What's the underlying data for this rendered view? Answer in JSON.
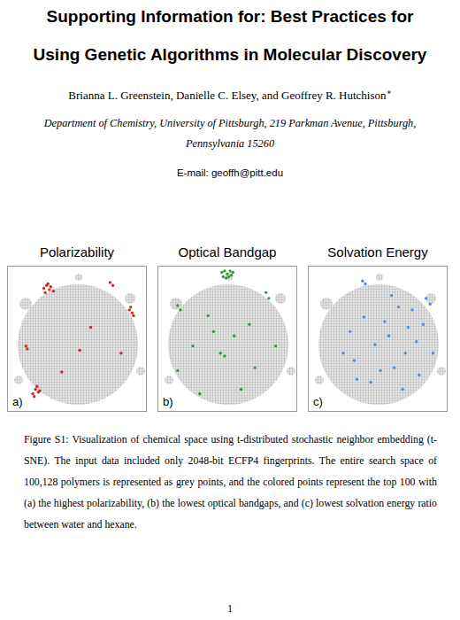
{
  "document": {
    "title_lines": [
      "Supporting Information for: Best Practices for",
      "Using Genetic Algorithms in Molecular Discovery"
    ],
    "authors": "Brianna L. Greenstein, Danielle C. Elsey, and Geoffrey R. Hutchison",
    "corresponding_mark": "∗",
    "affiliation_lines": [
      "Department of Chemistry, University of Pittsburgh, 219 Parkman Avenue, Pittsburgh,",
      "Pennsylvania 15260"
    ],
    "email": "E-mail: geoffh@pitt.edu",
    "caption": "Figure S1: Visualization of chemical space using t-distributed stochastic neighbor embedding (t-SNE). The input data included only 2048-bit ECFP4 fingerprints. The entire search space of 100,128 polymers is represented as grey points, and the colored points represent the top 100 with (a) the highest polarizability, (b) the lowest optical bandgaps, and (c) lowest solvation energy ratio between water and hexane.",
    "page_number": 1
  },
  "chart_data": [
    {
      "type": "scatter",
      "title": "Polarizability",
      "annotation": "a)",
      "xlim": [
        0,
        1
      ],
      "ylim": [
        0,
        1
      ],
      "tick_labels": false,
      "series": [
        {
          "color": "#d62728",
          "marker": "circle",
          "x": [
            0.26,
            0.28,
            0.3,
            0.27,
            0.31,
            0.29,
            0.33,
            0.74,
            0.76,
            0.88,
            0.9,
            0.89,
            0.91,
            0.13,
            0.14,
            0.39,
            0.52,
            0.2,
            0.22,
            0.18,
            0.21,
            0.19,
            0.23,
            0.6,
            0.82
          ],
          "values": [
            0.85,
            0.87,
            0.84,
            0.82,
            0.86,
            0.88,
            0.83,
            0.89,
            0.87,
            0.7,
            0.68,
            0.72,
            0.66,
            0.45,
            0.43,
            0.27,
            0.42,
            0.15,
            0.13,
            0.12,
            0.17,
            0.1,
            0.14,
            0.58,
            0.4
          ]
        }
      ]
    },
    {
      "type": "scatter",
      "title": "Optical Bandgap",
      "annotation": "b)",
      "xlim": [
        0,
        1
      ],
      "ylim": [
        0,
        1
      ],
      "tick_labels": false,
      "series": [
        {
          "color": "#2ca02c",
          "marker": "circle",
          "x": [
            0.46,
            0.48,
            0.5,
            0.52,
            0.54,
            0.47,
            0.51,
            0.53,
            0.49,
            0.14,
            0.16,
            0.36,
            0.55,
            0.78,
            0.8,
            0.85,
            0.14,
            0.3,
            0.6,
            0.45,
            0.48,
            0.66,
            0.4,
            0.25,
            0.7
          ],
          "values": [
            0.96,
            0.97,
            0.95,
            0.97,
            0.96,
            0.93,
            0.93,
            0.94,
            0.92,
            0.73,
            0.7,
            0.66,
            0.52,
            0.82,
            0.78,
            0.45,
            0.28,
            0.12,
            0.15,
            0.4,
            0.38,
            0.6,
            0.55,
            0.45,
            0.3
          ]
        }
      ]
    },
    {
      "type": "scatter",
      "title": "Solvation Energy",
      "annotation": "c)",
      "xlim": [
        0,
        1
      ],
      "ylim": [
        0,
        1
      ],
      "tick_labels": false,
      "series": [
        {
          "color": "#4f8fd6",
          "marker": "circle",
          "x": [
            0.39,
            0.41,
            0.75,
            0.85,
            0.88,
            0.58,
            0.7,
            0.33,
            0.45,
            0.25,
            0.8,
            0.65,
            0.62,
            0.55,
            0.72,
            0.48,
            0.3,
            0.9,
            0.68,
            0.52,
            0.4,
            0.78,
            0.6,
            0.35,
            0.83
          ],
          "values": [
            0.9,
            0.88,
            0.7,
            0.78,
            0.74,
            0.52,
            0.4,
            0.35,
            0.2,
            0.4,
            0.25,
            0.72,
            0.3,
            0.62,
            0.58,
            0.46,
            0.55,
            0.4,
            0.15,
            0.28,
            0.65,
            0.48,
            0.8,
            0.22,
            0.6
          ]
        }
      ]
    }
  ]
}
